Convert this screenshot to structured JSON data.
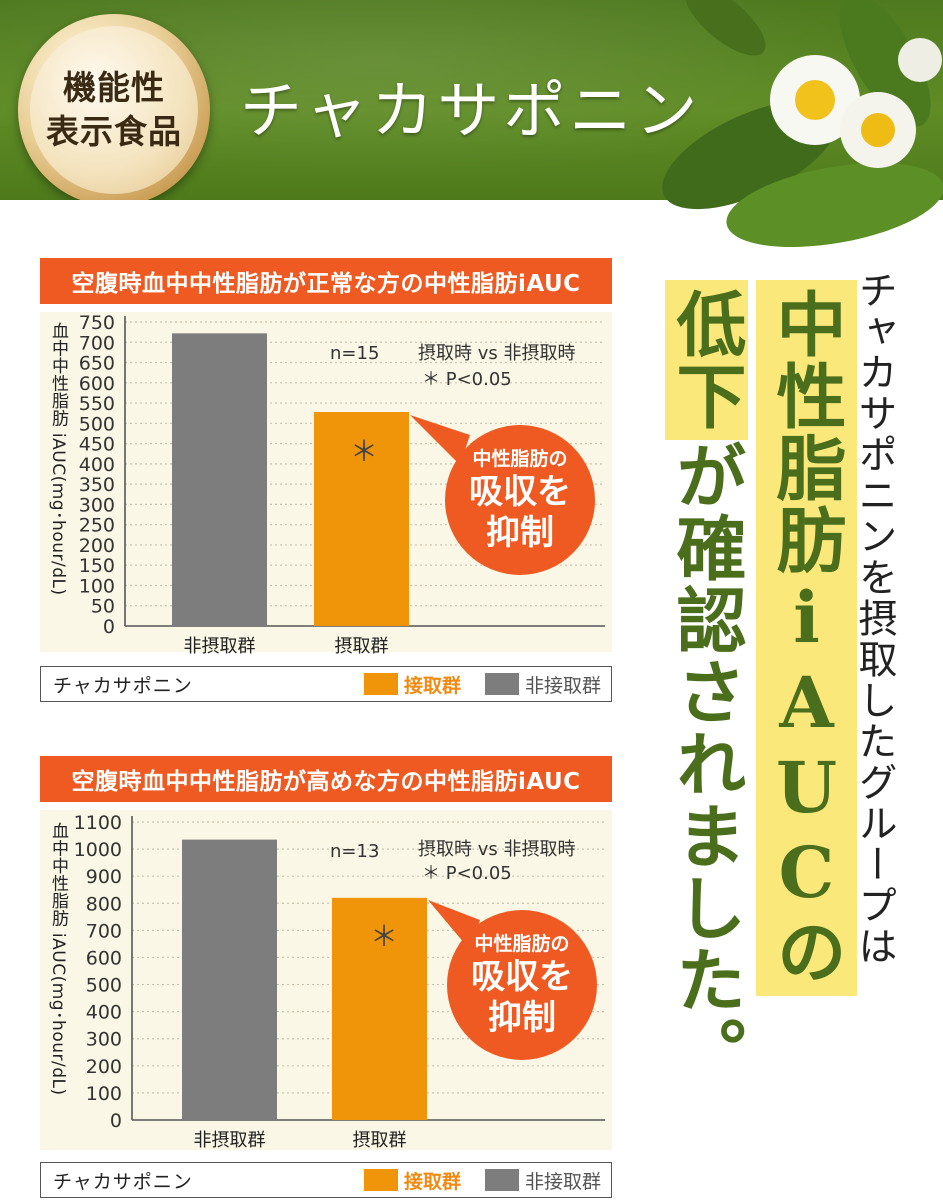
{
  "header": {
    "badge_line1": "機能性",
    "badge_line2": "表示食品",
    "title": "チャカサポニン"
  },
  "colors": {
    "header_green": "#5a8722",
    "accent_orange": "#ee5a22",
    "intake_bar": "#f0940a",
    "control_bar": "#7d7d7d",
    "highlight": "#fbe87a",
    "headline_green": "#4a6e1c"
  },
  "side_text": {
    "line1": "チャカサポニンを摂取したグループは",
    "line2a": "中性脂肪iAUCの",
    "line3a": "低下",
    "line3b": "が確認されました。"
  },
  "chart_data": [
    {
      "type": "bar",
      "title": "空腹時血中中性脂肪が正常な方の中性脂肪iAUC",
      "ylabel": "血中中性脂肪 iAUC(mg･hour/dL)",
      "categories": [
        "非摂取群",
        "摂取群"
      ],
      "values": [
        722,
        528
      ],
      "ylim": [
        0,
        750
      ],
      "yticks": [
        0,
        50,
        100,
        150,
        200,
        250,
        300,
        350,
        400,
        450,
        500,
        550,
        600,
        650,
        700,
        750
      ],
      "n_label": "n=15",
      "compare_label": "摂取時 vs 非摂取時",
      "p_label": "＊ P<0.05",
      "sig_mark": "＊",
      "callout": {
        "line1": "中性脂肪の",
        "line2": "吸収を",
        "line3": "抑制"
      },
      "legend": {
        "name": "チャカサポニン",
        "intake": "接取群",
        "control": "非接取群"
      },
      "grid": true
    },
    {
      "type": "bar",
      "title": "空腹時血中中性脂肪が高めな方の中性脂肪iAUC",
      "ylabel": "血中中性脂肪 iAUC(mg･hour/dL)",
      "categories": [
        "非摂取群",
        "摂取群"
      ],
      "values": [
        1035,
        820
      ],
      "ylim": [
        0,
        1100
      ],
      "yticks": [
        0,
        100,
        200,
        300,
        400,
        500,
        600,
        700,
        800,
        900,
        1000,
        1100
      ],
      "n_label": "n=13",
      "compare_label": "摂取時 vs 非摂取時",
      "p_label": "＊ P<0.05",
      "sig_mark": "＊",
      "callout": {
        "line1": "中性脂肪の",
        "line2": "吸収を",
        "line3": "抑制"
      },
      "legend": {
        "name": "チャカサポニン",
        "intake": "接取群",
        "control": "非接取群"
      },
      "grid": true
    }
  ]
}
